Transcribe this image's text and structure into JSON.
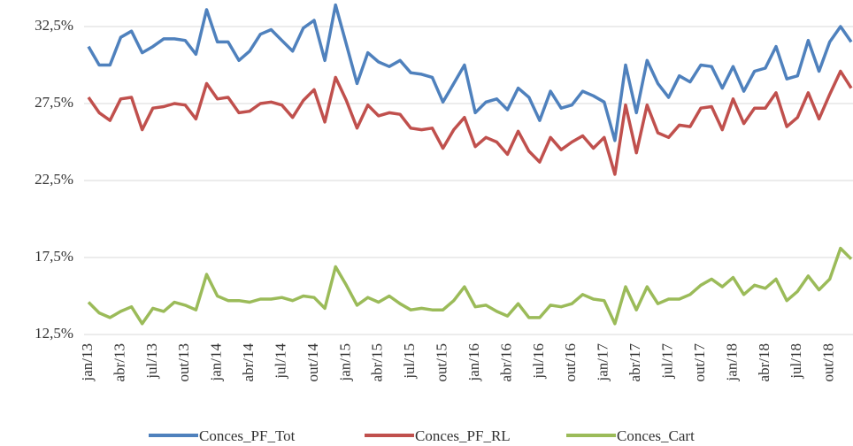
{
  "chart_data": {
    "type": "line",
    "categories": [
      "jan/13",
      null,
      null,
      "abr/13",
      null,
      null,
      "jul/13",
      null,
      null,
      "out/13",
      null,
      null,
      "jan/14",
      null,
      null,
      "abr/14",
      null,
      null,
      "jul/14",
      null,
      null,
      "out/14",
      null,
      null,
      "jan/15",
      null,
      null,
      "abr/15",
      null,
      null,
      "jul/15",
      null,
      null,
      "out/15",
      null,
      null,
      "jan/16",
      null,
      null,
      "abr/16",
      null,
      null,
      "jul/16",
      null,
      null,
      "out/16",
      null,
      null,
      "jan/17",
      null,
      null,
      "abr/17",
      null,
      null,
      "jul/17",
      null,
      null,
      "out/17",
      null,
      null,
      "jan/18",
      null,
      null,
      "abr/18",
      null,
      null,
      "jul/18",
      null,
      null,
      "out/18",
      null,
      null
    ],
    "series": [
      {
        "name": "Conces_PF_Tot",
        "color": "#4f81bd",
        "values": [
          31.2,
          30.0,
          30.0,
          31.8,
          32.2,
          30.8,
          31.2,
          31.7,
          31.7,
          31.6,
          30.7,
          33.6,
          31.5,
          31.5,
          30.3,
          30.9,
          32.0,
          32.3,
          31.6,
          30.9,
          32.4,
          32.9,
          30.3,
          33.9,
          31.35,
          28.8,
          30.8,
          30.2,
          29.9,
          30.3,
          29.5,
          29.4,
          29.2,
          27.6,
          28.8,
          30.0,
          26.9,
          27.6,
          27.8,
          27.1,
          28.5,
          27.9,
          26.4,
          28.3,
          27.2,
          27.4,
          28.3,
          28.0,
          27.6,
          25.1,
          30.0,
          26.9,
          30.3,
          28.8,
          27.9,
          29.3,
          28.9,
          30.0,
          29.9,
          28.5,
          29.9,
          28.3,
          29.6,
          29.8,
          31.2,
          29.1,
          29.3,
          31.6,
          29.6,
          31.5,
          32.5,
          31.5
        ]
      },
      {
        "name": "Conces_PF_RL",
        "color": "#c0504d",
        "values": [
          27.9,
          26.9,
          26.4,
          27.8,
          27.9,
          25.8,
          27.2,
          27.3,
          27.5,
          27.4,
          26.5,
          28.8,
          27.8,
          27.9,
          26.9,
          27.0,
          27.5,
          27.6,
          27.4,
          26.6,
          27.7,
          28.4,
          26.3,
          29.2,
          27.7,
          25.9,
          27.4,
          26.7,
          26.9,
          26.8,
          25.9,
          25.8,
          25.9,
          24.6,
          25.8,
          26.6,
          24.7,
          25.3,
          25.0,
          24.2,
          25.7,
          24.4,
          23.7,
          25.3,
          24.5,
          25.0,
          25.4,
          24.6,
          25.3,
          22.9,
          27.4,
          24.3,
          27.4,
          25.6,
          25.3,
          26.1,
          26.0,
          27.2,
          27.3,
          25.8,
          27.8,
          26.2,
          27.2,
          27.2,
          28.2,
          26.0,
          26.6,
          28.2,
          26.5,
          28.1,
          29.6,
          28.5
        ]
      },
      {
        "name": "Conces_Cart",
        "color": "#9bbb59",
        "values": [
          14.6,
          13.9,
          13.6,
          14.0,
          14.3,
          13.2,
          14.2,
          14.0,
          14.6,
          14.4,
          14.1,
          16.4,
          15.0,
          14.7,
          14.7,
          14.6,
          14.8,
          14.8,
          14.9,
          14.7,
          15.0,
          14.9,
          14.2,
          16.9,
          15.7,
          14.4,
          14.9,
          14.6,
          15.0,
          14.5,
          14.1,
          14.2,
          14.1,
          14.1,
          14.7,
          15.6,
          14.3,
          14.4,
          14.0,
          13.7,
          14.5,
          13.6,
          13.6,
          14.4,
          14.3,
          14.5,
          15.1,
          14.8,
          14.7,
          13.2,
          15.6,
          14.1,
          15.6,
          14.5,
          14.8,
          14.8,
          15.1,
          15.7,
          16.1,
          15.6,
          16.2,
          15.1,
          15.7,
          15.5,
          16.1,
          14.7,
          15.3,
          16.3,
          15.4,
          16.1,
          18.1,
          17.4
        ]
      }
    ],
    "ylim": [
      12.5,
      34.5
    ],
    "yticks": [
      {
        "value": 12.5,
        "label": "12,5%"
      },
      {
        "value": 17.5,
        "label": "17,5%"
      },
      {
        "value": 22.5,
        "label": "22,5%"
      },
      {
        "value": 27.5,
        "label": "27,5%"
      },
      {
        "value": 32.5,
        "label": "32,5%"
      }
    ],
    "grid": true,
    "legend": "bottom"
  }
}
